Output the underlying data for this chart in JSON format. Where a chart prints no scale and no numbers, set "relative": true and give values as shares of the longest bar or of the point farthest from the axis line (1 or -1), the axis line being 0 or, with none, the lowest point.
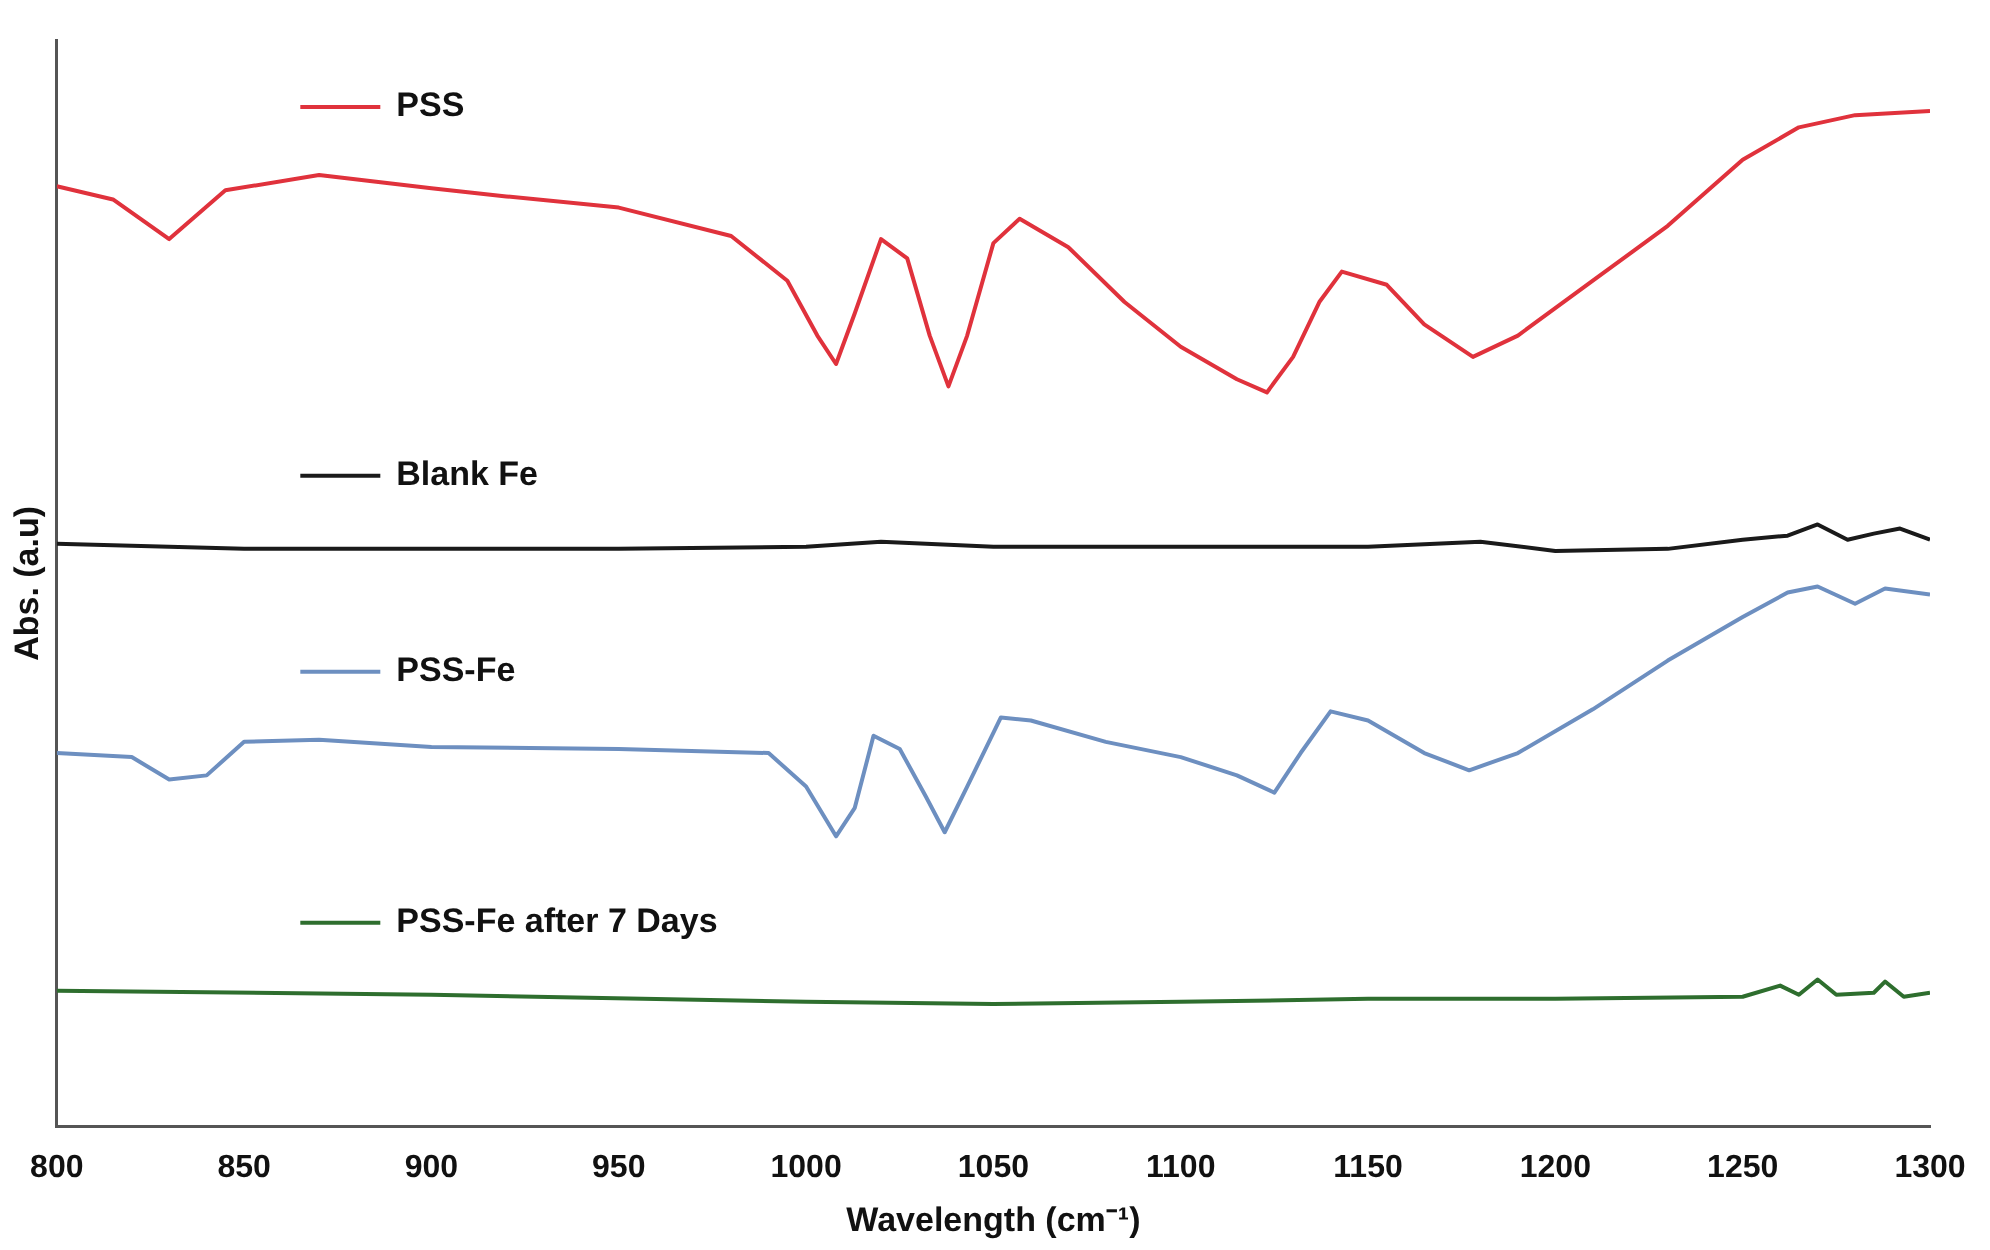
{
  "chart_data": {
    "type": "line",
    "xlabel": "Wavelength (cm⁻¹)",
    "ylabel": "Abs. (a.u)",
    "relative": true,
    "xlim": [
      800,
      1300
    ],
    "xticks": [
      800,
      850,
      900,
      950,
      1000,
      1050,
      1100,
      1150,
      1200,
      1250,
      1300
    ],
    "grid": false,
    "legend": "top left",
    "marker": "none",
    "line_style": "solid",
    "series": [
      {
        "name": "PSS",
        "color": "#e0323c",
        "x": [
          800,
          815,
          830,
          845,
          870,
          900,
          920,
          950,
          980,
          995,
          1003,
          1008,
          1013,
          1020,
          1027,
          1033,
          1038,
          1043,
          1050,
          1057,
          1070,
          1085,
          1100,
          1115,
          1123,
          1130,
          1137,
          1143,
          1155,
          1165,
          1178,
          1190,
          1210,
          1230,
          1250,
          1265,
          1280,
          1300
        ],
        "values": [
          0.926,
          0.913,
          0.874,
          0.922,
          0.937,
          0.924,
          0.916,
          0.905,
          0.877,
          0.833,
          0.779,
          0.751,
          0.801,
          0.874,
          0.855,
          0.779,
          0.729,
          0.779,
          0.87,
          0.894,
          0.866,
          0.812,
          0.768,
          0.736,
          0.723,
          0.758,
          0.812,
          0.842,
          0.829,
          0.79,
          0.758,
          0.779,
          0.833,
          0.887,
          0.952,
          0.984,
          0.996,
          1.0
        ]
      },
      {
        "name": "Blank Fe",
        "color": "#1a1a1a",
        "x": [
          800,
          850,
          900,
          950,
          1000,
          1020,
          1050,
          1100,
          1150,
          1180,
          1200,
          1230,
          1250,
          1262,
          1270,
          1278,
          1285,
          1292,
          1300
        ],
        "values": [
          0.574,
          0.569,
          0.569,
          0.569,
          0.571,
          0.576,
          0.571,
          0.571,
          0.571,
          0.576,
          0.567,
          0.569,
          0.578,
          0.582,
          0.593,
          0.578,
          0.584,
          0.589,
          0.578
        ]
      },
      {
        "name": "PSS-Fe",
        "color": "#6d8fc0",
        "x": [
          800,
          820,
          830,
          840,
          850,
          870,
          900,
          950,
          990,
          1000,
          1008,
          1013,
          1018,
          1025,
          1032,
          1037,
          1043,
          1052,
          1060,
          1080,
          1100,
          1115,
          1125,
          1132,
          1140,
          1150,
          1165,
          1177,
          1190,
          1210,
          1230,
          1250,
          1262,
          1270,
          1280,
          1288,
          1300
        ],
        "values": [
          0.368,
          0.364,
          0.342,
          0.346,
          0.379,
          0.381,
          0.374,
          0.372,
          0.368,
          0.335,
          0.286,
          0.314,
          0.385,
          0.372,
          0.325,
          0.29,
          0.335,
          0.403,
          0.4,
          0.379,
          0.364,
          0.346,
          0.329,
          0.368,
          0.409,
          0.4,
          0.368,
          0.351,
          0.368,
          0.411,
          0.459,
          0.502,
          0.526,
          0.532,
          0.515,
          0.53,
          0.524
        ]
      },
      {
        "name": "PSS-Fe after 7 Days",
        "color": "#2e6e2e",
        "x": [
          800,
          900,
          1000,
          1050,
          1100,
          1150,
          1200,
          1250,
          1260,
          1265,
          1270,
          1275,
          1285,
          1288,
          1293,
          1300
        ],
        "values": [
          0.134,
          0.13,
          0.123,
          0.121,
          0.123,
          0.126,
          0.126,
          0.128,
          0.139,
          0.13,
          0.145,
          0.13,
          0.132,
          0.143,
          0.128,
          0.132
        ]
      }
    ]
  }
}
